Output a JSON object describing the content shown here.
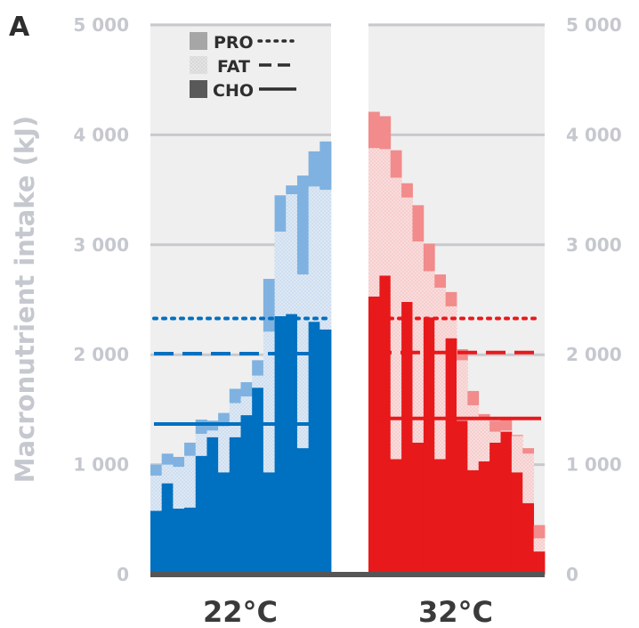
{
  "panel_label": "A",
  "chart_data": {
    "type": "bar",
    "ylabel": "Macronutrient intake (kJ)",
    "ylim": [
      0,
      5000
    ],
    "yticks": [
      0,
      1000,
      2000,
      3000,
      4000,
      5000
    ],
    "ytick_labels": [
      "0",
      "1 000",
      "2 000",
      "3 000",
      "4 000",
      "5 000"
    ],
    "categories": [
      "22°C",
      "32°C"
    ],
    "stacked": true,
    "grid": true,
    "legend_position": "top-left",
    "legend": [
      {
        "name": "PRO",
        "line_style": "dotted"
      },
      {
        "name": "FAT",
        "line_style": "dashed"
      },
      {
        "name": "CHO",
        "line_style": "solid"
      }
    ],
    "panels": [
      {
        "category": "22°C",
        "colors": {
          "CHO": "#0070c0",
          "FAT": "#dde8f4",
          "PRO": "#7fb2e0"
        },
        "bars": [
          {
            "CHO": 580,
            "FAT": 320,
            "PRO": 100
          },
          {
            "CHO": 830,
            "FAT": 170,
            "PRO": 100
          },
          {
            "CHO": 600,
            "FAT": 380,
            "PRO": 90
          },
          {
            "CHO": 610,
            "FAT": 470,
            "PRO": 120
          },
          {
            "CHO": 1080,
            "FAT": 200,
            "PRO": 130
          },
          {
            "CHO": 1250,
            "FAT": 60,
            "PRO": 90
          },
          {
            "CHO": 930,
            "FAT": 420,
            "PRO": 120
          },
          {
            "CHO": 1250,
            "FAT": 310,
            "PRO": 130
          },
          {
            "CHO": 1450,
            "FAT": 170,
            "PRO": 130
          },
          {
            "CHO": 1700,
            "FAT": 110,
            "PRO": 140
          },
          {
            "CHO": 930,
            "FAT": 1280,
            "PRO": 480
          },
          {
            "CHO": 2350,
            "FAT": 770,
            "PRO": 330
          },
          {
            "CHO": 2370,
            "FAT": 1090,
            "PRO": 80
          },
          {
            "CHO": 1150,
            "FAT": 1580,
            "PRO": 900
          },
          {
            "CHO": 2300,
            "FAT": 1230,
            "PRO": 320
          },
          {
            "CHO": 2230,
            "FAT": 1270,
            "PRO": 440
          }
        ],
        "means": {
          "PRO": 2330,
          "FAT": 2010,
          "CHO": 1370
        }
      },
      {
        "category": "32°C",
        "colors": {
          "CHO": "#e8191b",
          "FAT": "#f9dcdc",
          "PRO": "#f28b8b"
        },
        "bars": [
          {
            "CHO": 2530,
            "FAT": 1350,
            "PRO": 330
          },
          {
            "CHO": 2720,
            "FAT": 1150,
            "PRO": 300
          },
          {
            "CHO": 1050,
            "FAT": 2560,
            "PRO": 250
          },
          {
            "CHO": 2480,
            "FAT": 950,
            "PRO": 130
          },
          {
            "CHO": 1200,
            "FAT": 1830,
            "PRO": 330
          },
          {
            "CHO": 2340,
            "FAT": 420,
            "PRO": 250
          },
          {
            "CHO": 1050,
            "FAT": 1560,
            "PRO": 120
          },
          {
            "CHO": 2150,
            "FAT": 290,
            "PRO": 130
          },
          {
            "CHO": 1400,
            "FAT": 550,
            "PRO": 100
          },
          {
            "CHO": 950,
            "FAT": 590,
            "PRO": 130
          },
          {
            "CHO": 1030,
            "FAT": 380,
            "PRO": 50
          },
          {
            "CHO": 1200,
            "FAT": 100,
            "PRO": 100
          },
          {
            "CHO": 1300,
            "FAT": 10,
            "PRO": 110
          },
          {
            "CHO": 930,
            "FAT": 330,
            "PRO": 10
          },
          {
            "CHO": 650,
            "FAT": 450,
            "PRO": 50
          },
          {
            "CHO": 210,
            "FAT": 120,
            "PRO": 120
          }
        ],
        "means": {
          "PRO": 2330,
          "FAT": 2020,
          "CHO": 1420
        }
      }
    ]
  }
}
